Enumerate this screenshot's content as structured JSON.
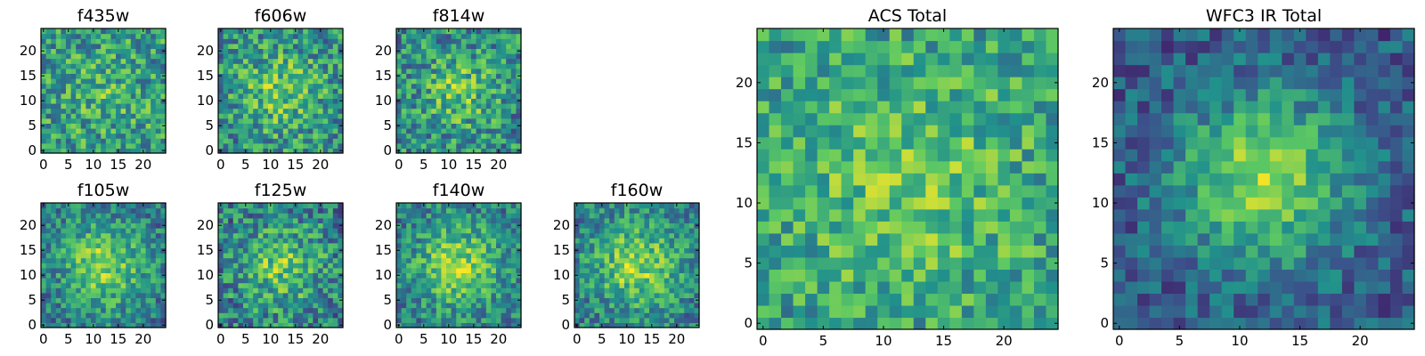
{
  "colormap": {
    "name": "viridis",
    "stops": [
      "#440154",
      "#3b528b",
      "#21918c",
      "#5ec962",
      "#fde725"
    ]
  },
  "chart_data": [
    {
      "type": "heatmap",
      "title": "f435w",
      "grid_size": 25,
      "x_ticks": [
        "0",
        "5",
        "10",
        "15",
        "20"
      ],
      "y_ticks": [
        "0",
        "5",
        "10",
        "15",
        "20"
      ],
      "xlim": [
        0,
        25
      ],
      "ylim": [
        0,
        25
      ],
      "signal": 0.12,
      "noise": 0.55,
      "bias": 0.58,
      "spread": 5,
      "seed": 11
    },
    {
      "type": "heatmap",
      "title": "f606w",
      "grid_size": 25,
      "x_ticks": [
        "0",
        "5",
        "10",
        "15",
        "20"
      ],
      "y_ticks": [
        "0",
        "5",
        "10",
        "15",
        "20"
      ],
      "xlim": [
        0,
        25
      ],
      "ylim": [
        0,
        25
      ],
      "signal": 0.25,
      "noise": 0.55,
      "bias": 0.55,
      "spread": 6,
      "seed": 23
    },
    {
      "type": "heatmap",
      "title": "f814w",
      "grid_size": 25,
      "x_ticks": [
        "0",
        "5",
        "10",
        "15",
        "20"
      ],
      "y_ticks": [
        "0",
        "5",
        "10",
        "15",
        "20"
      ],
      "xlim": [
        0,
        25
      ],
      "ylim": [
        0,
        25
      ],
      "signal": 0.25,
      "noise": 0.55,
      "bias": 0.55,
      "spread": 5,
      "seed": 37
    },
    {
      "type": "heatmap",
      "title": "f105w",
      "grid_size": 25,
      "x_ticks": [
        "0",
        "5",
        "10",
        "15",
        "20"
      ],
      "y_ticks": [
        "0",
        "5",
        "10",
        "15",
        "20"
      ],
      "xlim": [
        0,
        25
      ],
      "ylim": [
        0,
        25
      ],
      "signal": 0.4,
      "noise": 0.45,
      "bias": 0.5,
      "spread": 6,
      "seed": 41
    },
    {
      "type": "heatmap",
      "title": "f125w",
      "grid_size": 25,
      "x_ticks": [
        "0",
        "5",
        "10",
        "15",
        "20"
      ],
      "y_ticks": [
        "0",
        "5",
        "10",
        "15",
        "20"
      ],
      "xlim": [
        0,
        25
      ],
      "ylim": [
        0,
        25
      ],
      "signal": 0.3,
      "noise": 0.55,
      "bias": 0.5,
      "spread": 6,
      "seed": 53
    },
    {
      "type": "heatmap",
      "title": "f140w",
      "grid_size": 25,
      "x_ticks": [
        "0",
        "5",
        "10",
        "15",
        "20"
      ],
      "y_ticks": [
        "0",
        "5",
        "10",
        "15",
        "20"
      ],
      "xlim": [
        0,
        25
      ],
      "ylim": [
        0,
        25
      ],
      "signal": 0.4,
      "noise": 0.45,
      "bias": 0.52,
      "spread": 6,
      "seed": 67
    },
    {
      "type": "heatmap",
      "title": "f160w",
      "grid_size": 25,
      "x_ticks": [
        "0",
        "5",
        "10",
        "15",
        "20"
      ],
      "y_ticks": [
        "0",
        "5",
        "10",
        "15",
        "20"
      ],
      "xlim": [
        0,
        25
      ],
      "ylim": [
        0,
        25
      ],
      "signal": 0.4,
      "noise": 0.45,
      "bias": 0.52,
      "spread": 6,
      "seed": 79
    },
    {
      "type": "heatmap",
      "title": "ACS Total",
      "grid_size": 25,
      "x_ticks": [
        "0",
        "5",
        "10",
        "15",
        "20"
      ],
      "y_ticks": [
        "0",
        "5",
        "10",
        "15",
        "20"
      ],
      "xlim": [
        0,
        25
      ],
      "ylim": [
        0,
        25
      ],
      "signal": 0.2,
      "noise": 0.45,
      "bias": 0.6,
      "spread": 7,
      "seed": 97
    },
    {
      "type": "heatmap",
      "title": "WFC3 IR Total",
      "grid_size": 25,
      "x_ticks": [
        "0",
        "5",
        "10",
        "15",
        "20"
      ],
      "y_ticks": [
        "0",
        "5",
        "10",
        "15",
        "20"
      ],
      "xlim": [
        0,
        25
      ],
      "ylim": [
        0,
        25
      ],
      "signal": 0.55,
      "noise": 0.35,
      "bias": 0.42,
      "spread": 5,
      "seed": 113
    }
  ]
}
